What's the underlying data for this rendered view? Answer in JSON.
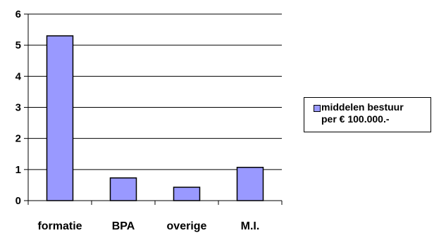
{
  "chart_data": {
    "type": "bar",
    "categories": [
      "formatie",
      "BPA",
      "overige",
      "M.I."
    ],
    "series": [
      {
        "name": "middelen bestuur\nper € 100.000.-",
        "values": [
          5.3,
          0.73,
          0.43,
          1.07
        ],
        "color": "#9999ff"
      }
    ],
    "ylim": [
      0,
      6
    ],
    "yticks": [
      "0",
      "1",
      "2",
      "3",
      "4",
      "5",
      "6"
    ],
    "grid": true,
    "legend_position": "right"
  }
}
